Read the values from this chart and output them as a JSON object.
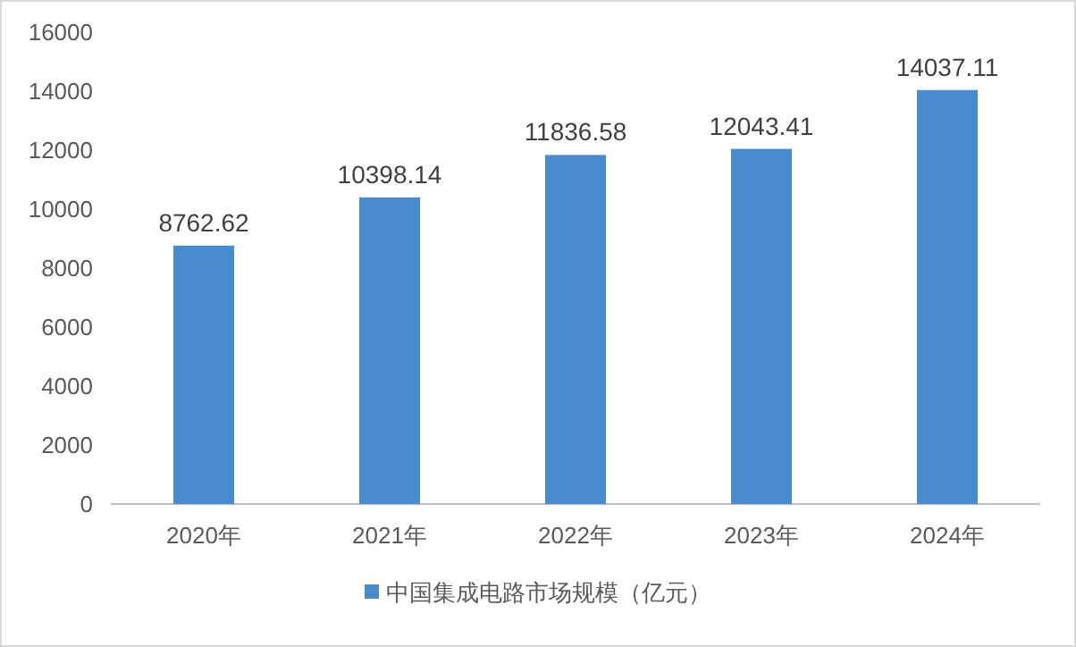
{
  "chart_data": {
    "type": "bar",
    "categories": [
      "2020年",
      "2021年",
      "2022年",
      "2023年",
      "2024年"
    ],
    "series": [
      {
        "name": "中国集成电路市场规模（亿元）",
        "color": "#4a8bd0",
        "values": [
          8762.62,
          10398.14,
          11836.58,
          12043.41,
          14037.11
        ]
      }
    ],
    "ylim": [
      0,
      16000
    ],
    "yticks": [
      0,
      2000,
      4000,
      6000,
      8000,
      10000,
      12000,
      14000,
      16000
    ],
    "grid": false,
    "legend": "bottom",
    "data_labels": true
  }
}
